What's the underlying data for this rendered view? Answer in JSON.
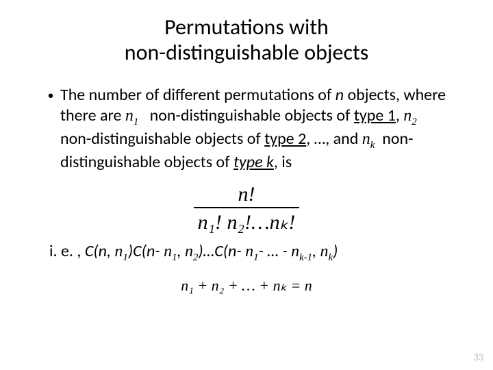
{
  "slide": {
    "title_line1": "Permutations with",
    "title_line2": "non-distinguishable objects",
    "title_fontsize": 32,
    "body_fontsize": 24,
    "page_number": "33",
    "colors": {
      "text": "#000000",
      "background": "#ffffff",
      "pagenum": "#bfbfbf"
    }
  },
  "bullet": {
    "prefix": "The number of different permutations of ",
    "var_n": "n",
    "seg1": " objects, where there are ",
    "n1": "n",
    "n1_sub": "1",
    "seg2": " non-distinguishable objects of ",
    "type1": "type 1",
    "seg3": ", ",
    "n2": "n",
    "n2_sub": "2",
    "seg4": " non-distinguishable objects of ",
    "type2": "type 2",
    "seg5": ", …, and ",
    "nk": "n",
    "nk_sub": "k",
    "seg6": " non-distinguishable objects of ",
    "typek": "type k",
    "seg7": ", is"
  },
  "formula": {
    "numerator": "n!",
    "denominator": "n₁! n₂!…nₖ!"
  },
  "line2": {
    "lead": "i. e. , ",
    "c1a": "C(n, ",
    "c1b_n": "n",
    "c1b_s": "1",
    "c1c": ")",
    "c2a": "C(n- ",
    "c2b_n": "n",
    "c2b_s": "1",
    "c2c": ", ",
    "c2d_n": "n",
    "c2d_s": "2",
    "c2e": ")…",
    "c3a": "C(n- ",
    "c3b_n": "n",
    "c3b_s": "1",
    "c3c": "- … - ",
    "c3d_n": "n",
    "c3d_s": "k-1",
    "c3e": ", ",
    "c3f_n": "n",
    "c3f_s": "k",
    "c3g": ")"
  },
  "eq": {
    "text": "n₁ + n₂ + … + nₖ = n"
  }
}
